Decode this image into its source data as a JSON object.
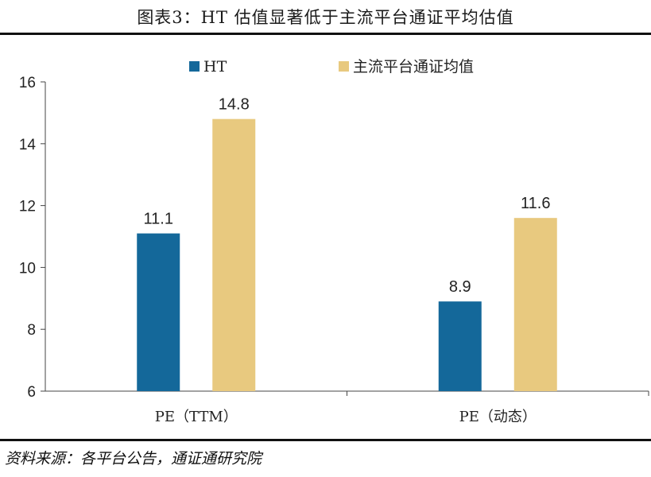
{
  "header": {
    "title": "图表3：HT 估值显著低于主流平台通证平均估值"
  },
  "footer": {
    "source": "资料来源：各平台公告，通证通研究院"
  },
  "chart_data": {
    "type": "bar",
    "categories": [
      "PE（TTM）",
      "PE（动态）"
    ],
    "series": [
      {
        "name": "HT",
        "values": [
          11.1,
          8.9
        ],
        "color": "#14689a"
      },
      {
        "name": "主流平台通证均值",
        "values": [
          14.8,
          11.6
        ],
        "color": "#e8c97f"
      }
    ],
    "data_labels": [
      [
        "11.1",
        "8.9"
      ],
      [
        "14.8",
        "11.6"
      ]
    ],
    "yticks": [
      "6",
      "8",
      "10",
      "12",
      "14",
      "16"
    ],
    "ylim": [
      6,
      16
    ],
    "legend_position": "top",
    "grid": false
  }
}
